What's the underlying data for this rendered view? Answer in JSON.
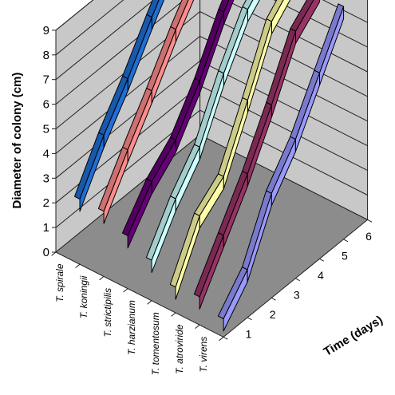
{
  "chart_data": {
    "type": "line",
    "view": "3d-ribbon",
    "ylabel": "Diameter of colony (cm)",
    "xlabel": "Time (days)",
    "ylim": [
      0,
      9
    ],
    "y_ticks": [
      "0",
      "1",
      "2",
      "3",
      "4",
      "5",
      "6",
      "7",
      "8",
      "9"
    ],
    "x": [
      1,
      2,
      3,
      4,
      5,
      6
    ],
    "x_ticks": [
      "1",
      "2",
      "3",
      "4",
      "5",
      "6"
    ],
    "categories": [
      "T. spirale",
      "T. koningii",
      "T. strictipilis",
      "T. harzianum",
      "T. tomentosum",
      "T. atroviride",
      "T. virens"
    ],
    "grid": true,
    "series": [
      {
        "name": "T. spirale",
        "color": "#1f6fd6",
        "values": [
          2.0,
          3.8,
          5.3,
          7.0,
          8.6,
          9.0
        ]
      },
      {
        "name": "T. koningii",
        "color": "#ff8c8c",
        "values": [
          2.0,
          3.7,
          5.3,
          7.0,
          8.5,
          9.0
        ]
      },
      {
        "name": "T. strictipilis",
        "color": "#660077",
        "values": [
          1.5,
          2.9,
          3.8,
          5.4,
          7.4,
          9.0
        ]
      },
      {
        "name": "T. harzianum",
        "color": "#ccffff",
        "values": [
          1.0,
          2.7,
          4.0,
          6.2,
          8.0,
          9.0
        ]
      },
      {
        "name": "T. tomentosum",
        "color": "#ffffaa",
        "values": [
          0.4,
          2.5,
          3.3,
          5.6,
          8.0,
          9.0
        ]
      },
      {
        "name": "T. atroviride",
        "color": "#993366",
        "values": [
          0.5,
          2.2,
          3.9,
          5.9,
          8.1,
          9.0
        ]
      },
      {
        "name": "T. virens",
        "color": "#9999ff",
        "values": [
          0.1,
          1.3,
          3.6,
          5.0,
          6.9,
          8.8
        ]
      }
    ]
  }
}
